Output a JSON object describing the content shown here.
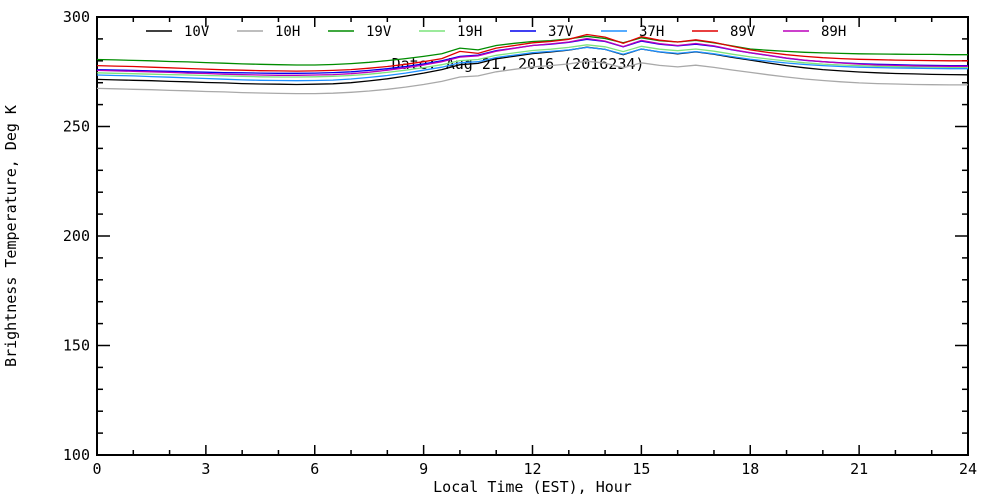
{
  "chart_data": {
    "type": "line",
    "title": "Date: Aug 21, 2016 (2016234)",
    "xlabel": "Local Time (EST), Hour",
    "ylabel": "Brightness Temperature, Deg K",
    "xlim": [
      0,
      24
    ],
    "ylim": [
      100,
      300
    ],
    "xticks_major": [
      0,
      3,
      6,
      9,
      12,
      15,
      18,
      21,
      24
    ],
    "xtick_minor_step": 1,
    "yticks_major": [
      100,
      150,
      200,
      250,
      300
    ],
    "ytick_minor_step": 10,
    "grid": false,
    "legend_position": "top-inside",
    "frame_color": "#000000",
    "x": [
      0,
      0.5,
      1,
      1.5,
      2,
      2.5,
      3,
      3.5,
      4,
      4.5,
      5,
      5.5,
      6,
      6.5,
      7,
      7.5,
      8,
      8.5,
      9,
      9.5,
      10,
      10.5,
      11,
      11.5,
      12,
      12.5,
      13,
      13.5,
      14,
      14.5,
      15,
      15.5,
      16,
      16.5,
      17,
      17.5,
      18,
      18.5,
      19,
      19.5,
      20,
      20.5,
      21,
      21.5,
      22,
      22.5,
      23,
      23.5,
      24
    ],
    "series": [
      {
        "name": "10V",
        "color": "#000000",
        "values": [
          271.5,
          271.3,
          271.1,
          270.9,
          270.6,
          270.4,
          270.1,
          269.9,
          269.6,
          269.4,
          269.3,
          269.2,
          269.3,
          269.5,
          270.0,
          270.8,
          271.8,
          273.0,
          274.4,
          276.0,
          278.2,
          278.8,
          280.9,
          282.1,
          283.3,
          284.0,
          284.9,
          286.2,
          285.2,
          282.8,
          285.4,
          284.0,
          283.2,
          284.1,
          283.0,
          281.6,
          280.3,
          279.0,
          277.8,
          276.8,
          276.0,
          275.4,
          274.9,
          274.5,
          274.2,
          274.0,
          273.8,
          273.7,
          273.6
        ]
      },
      {
        "name": "10H",
        "color": "#A9A9A9",
        "values": [
          267.4,
          267.2,
          267.0,
          266.8,
          266.5,
          266.3,
          266.0,
          265.8,
          265.5,
          265.3,
          265.1,
          265.0,
          265.0,
          265.2,
          265.6,
          266.2,
          267.0,
          268.0,
          269.2,
          270.6,
          272.6,
          273.1,
          275.0,
          276.1,
          277.2,
          277.8,
          278.6,
          279.8,
          278.9,
          276.8,
          279.1,
          277.9,
          277.2,
          278.0,
          277.0,
          275.8,
          274.7,
          273.6,
          272.6,
          271.7,
          271.0,
          270.4,
          269.9,
          269.6,
          269.4,
          269.2,
          269.1,
          269.0,
          269.0
        ]
      },
      {
        "name": "19V",
        "color": "#008C00",
        "values": [
          280.6,
          280.4,
          280.2,
          280.0,
          279.7,
          279.5,
          279.2,
          278.9,
          278.6,
          278.4,
          278.2,
          278.1,
          278.1,
          278.3,
          278.7,
          279.3,
          280.1,
          281.0,
          282.0,
          283.2,
          285.8,
          285.0,
          287.0,
          288.0,
          288.8,
          289.2,
          290.0,
          291.2,
          290.2,
          288.2,
          290.5,
          289.2,
          288.6,
          289.3,
          288.2,
          286.8,
          285.4,
          284.8,
          284.3,
          283.9,
          283.6,
          283.4,
          283.2,
          283.1,
          283.0,
          282.9,
          282.9,
          282.8,
          282.8
        ]
      },
      {
        "name": "19H",
        "color": "#7CE37C",
        "values": [
          274.5,
          274.3,
          274.1,
          273.9,
          273.7,
          273.5,
          273.3,
          273.1,
          272.9,
          272.7,
          272.6,
          272.6,
          272.7,
          272.9,
          273.3,
          273.9,
          274.7,
          275.7,
          276.9,
          278.2,
          280.1,
          280.6,
          282.5,
          283.6,
          284.7,
          285.3,
          286.1,
          287.3,
          286.4,
          284.2,
          286.6,
          285.3,
          284.6,
          285.4,
          284.4,
          283.0,
          281.8,
          280.8,
          279.9,
          279.1,
          278.5,
          278.1,
          277.8,
          277.5,
          277.3,
          277.2,
          277.1,
          277.0,
          277.0
        ]
      },
      {
        "name": "37V",
        "color": "#0000EE",
        "values": [
          276.0,
          275.8,
          275.6,
          275.4,
          275.2,
          275.0,
          274.8,
          274.6,
          274.5,
          274.4,
          274.3,
          274.3,
          274.4,
          274.6,
          275.0,
          275.6,
          276.4,
          277.4,
          278.6,
          280.0,
          282.0,
          282.6,
          284.6,
          285.8,
          287.0,
          287.6,
          288.4,
          289.8,
          288.8,
          286.4,
          289.0,
          287.6,
          286.8,
          287.6,
          286.6,
          285.0,
          283.6,
          282.4,
          281.2,
          280.2,
          279.6,
          279.1,
          278.7,
          278.4,
          278.2,
          278.0,
          277.9,
          277.8,
          277.8
        ]
      },
      {
        "name": "37H",
        "color": "#1E90FF",
        "values": [
          273.5,
          273.3,
          273.1,
          272.8,
          272.5,
          272.2,
          271.9,
          271.6,
          271.3,
          271.1,
          271.0,
          270.9,
          271.0,
          271.2,
          271.7,
          272.4,
          273.3,
          274.4,
          275.7,
          277.1,
          279.1,
          279.6,
          281.5,
          282.6,
          283.7,
          284.3,
          285.0,
          286.1,
          285.2,
          283.0,
          285.4,
          284.1,
          283.4,
          284.2,
          283.2,
          281.9,
          280.7,
          279.8,
          279.0,
          278.3,
          277.8,
          277.4,
          277.1,
          276.9,
          276.7,
          276.6,
          276.5,
          276.4,
          276.4
        ]
      },
      {
        "name": "89V",
        "color": "#E00000",
        "values": [
          277.8,
          277.6,
          277.4,
          277.1,
          276.8,
          276.5,
          276.2,
          275.9,
          275.7,
          275.5,
          275.4,
          275.3,
          275.4,
          275.6,
          276.0,
          276.6,
          277.4,
          278.4,
          279.6,
          281.0,
          284.3,
          283.4,
          285.8,
          287.0,
          288.2,
          288.8,
          289.8,
          292.0,
          290.8,
          288.0,
          291.0,
          289.4,
          288.6,
          289.6,
          288.4,
          286.6,
          285.0,
          283.8,
          282.8,
          282.0,
          281.4,
          281.0,
          280.7,
          280.5,
          280.3,
          280.2,
          280.1,
          280.0,
          280.0
        ]
      },
      {
        "name": "89H",
        "color": "#BB00BB",
        "values": [
          275.6,
          275.4,
          275.2,
          275.0,
          274.7,
          274.4,
          274.2,
          273.9,
          273.7,
          273.5,
          273.4,
          273.4,
          273.5,
          273.7,
          274.1,
          274.8,
          275.7,
          276.8,
          278.1,
          279.6,
          281.7,
          282.3,
          284.4,
          285.7,
          287.0,
          287.7,
          288.6,
          290.2,
          289.0,
          286.5,
          289.3,
          287.8,
          287.0,
          287.9,
          286.8,
          285.1,
          283.7,
          282.5,
          281.3,
          280.3,
          279.6,
          279.0,
          278.5,
          278.1,
          277.9,
          277.7,
          277.6,
          277.5,
          277.5
        ]
      }
    ]
  }
}
